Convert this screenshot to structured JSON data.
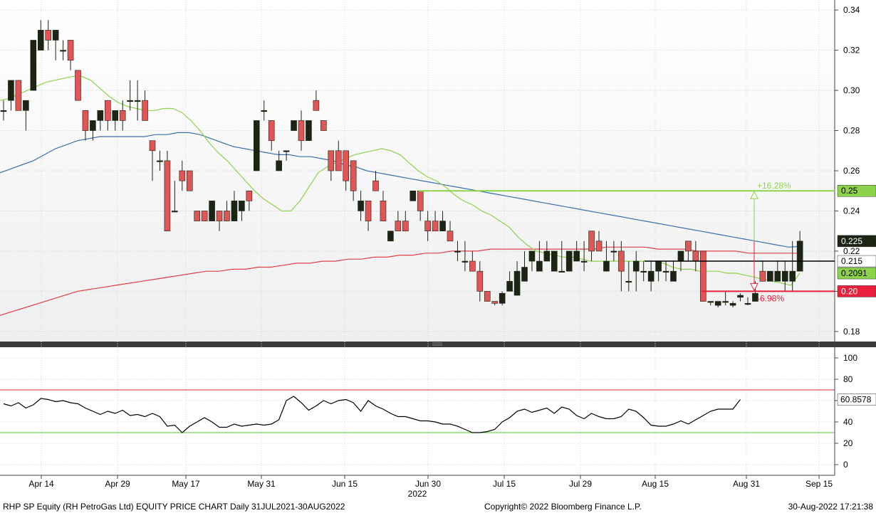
{
  "footer": {
    "left": "RHP SP Equity (RH PetroGas Ltd) EQUITY PRICE CHART  Daily 31JUL2021-30AUG2022",
    "center": "Copyright© 2022 Bloomberg Finance L.P.",
    "right": "30-Aug-2022 17:21:38"
  },
  "chart_data": {
    "type": "candlestick",
    "x_ticks": [
      "Apr 14",
      "Apr 29",
      "May 17",
      "May 31",
      "Jun 15",
      "Jun 30",
      "Jul 15",
      "Jul 29",
      "Aug 15",
      "Aug 31",
      "Sep 15"
    ],
    "x_year_label": "2022",
    "price_axis": {
      "ylim": [
        0.175,
        0.345
      ],
      "ticks": [
        "0.18",
        "0.20",
        "0.22",
        "0.24",
        "0.26",
        "0.28",
        "0.30",
        "0.32",
        "0.34"
      ]
    },
    "indicator_axis": {
      "ylim": [
        -10,
        110
      ],
      "ticks": [
        "0",
        "20",
        "40",
        "60",
        "80",
        "100"
      ],
      "overbought": 70,
      "oversold": 30
    },
    "colors": {
      "up": "#1c2414",
      "down": "#e05555",
      "ma_short": "#8cd24a",
      "ma_mid": "#3d6fb0",
      "ma_long": "#e04048",
      "indicator": "#000000",
      "target_high": "#8cd24a",
      "target_low": "#e8203c",
      "level_line": "#000000"
    },
    "candles": [
      [
        0.29,
        0.295,
        0.285,
        0.29
      ],
      [
        0.295,
        0.305,
        0.29,
        0.305
      ],
      [
        0.305,
        0.305,
        0.29,
        0.29
      ],
      [
        0.29,
        0.295,
        0.28,
        0.295
      ],
      [
        0.3,
        0.325,
        0.3,
        0.325
      ],
      [
        0.32,
        0.335,
        0.32,
        0.33
      ],
      [
        0.33,
        0.335,
        0.32,
        0.325
      ],
      [
        0.325,
        0.33,
        0.315,
        0.33
      ],
      [
        0.32,
        0.325,
        0.315,
        0.32
      ],
      [
        0.325,
        0.325,
        0.31,
        0.315
      ],
      [
        0.31,
        0.31,
        0.295,
        0.295
      ],
      [
        0.29,
        0.29,
        0.275,
        0.28
      ],
      [
        0.28,
        0.285,
        0.275,
        0.285
      ],
      [
        0.285,
        0.29,
        0.28,
        0.29
      ],
      [
        0.295,
        0.295,
        0.28,
        0.285
      ],
      [
        0.285,
        0.29,
        0.28,
        0.29
      ],
      [
        0.29,
        0.295,
        0.28,
        0.285
      ],
      [
        0.295,
        0.305,
        0.29,
        0.295
      ],
      [
        0.295,
        0.305,
        0.285,
        0.295
      ],
      [
        0.295,
        0.3,
        0.285,
        0.285
      ],
      [
        0.275,
        0.275,
        0.255,
        0.27
      ],
      [
        0.265,
        0.27,
        0.26,
        0.265
      ],
      [
        0.265,
        0.27,
        0.23,
        0.23
      ],
      [
        0.24,
        0.255,
        0.24,
        0.24
      ],
      [
        0.26,
        0.265,
        0.25,
        0.255
      ],
      [
        0.26,
        0.26,
        0.25,
        0.25
      ],
      [
        0.24,
        0.24,
        0.235,
        0.235
      ],
      [
        0.24,
        0.24,
        0.235,
        0.235
      ],
      [
        0.235,
        0.245,
        0.235,
        0.245
      ],
      [
        0.24,
        0.24,
        0.23,
        0.235
      ],
      [
        0.24,
        0.245,
        0.235,
        0.235
      ],
      [
        0.235,
        0.25,
        0.235,
        0.245
      ],
      [
        0.24,
        0.245,
        0.235,
        0.245
      ],
      [
        0.25,
        0.25,
        0.24,
        0.245
      ],
      [
        0.26,
        0.285,
        0.26,
        0.285
      ],
      [
        0.29,
        0.295,
        0.285,
        0.29
      ],
      [
        0.285,
        0.285,
        0.27,
        0.275
      ],
      [
        0.26,
        0.27,
        0.26,
        0.265
      ],
      [
        0.27,
        0.27,
        0.265,
        0.27
      ],
      [
        0.28,
        0.285,
        0.28,
        0.285
      ],
      [
        0.285,
        0.29,
        0.27,
        0.275
      ],
      [
        0.275,
        0.285,
        0.275,
        0.285
      ],
      [
        0.295,
        0.3,
        0.29,
        0.29
      ],
      [
        0.285,
        0.285,
        0.28,
        0.28
      ],
      [
        0.27,
        0.27,
        0.255,
        0.26
      ],
      [
        0.27,
        0.275,
        0.26,
        0.26
      ],
      [
        0.27,
        0.27,
        0.25,
        0.255
      ],
      [
        0.265,
        0.265,
        0.245,
        0.25
      ],
      [
        0.24,
        0.25,
        0.235,
        0.245
      ],
      [
        0.245,
        0.245,
        0.23,
        0.235
      ],
      [
        0.255,
        0.26,
        0.25,
        0.25
      ],
      [
        0.245,
        0.25,
        0.235,
        0.235
      ],
      [
        0.225,
        0.23,
        0.225,
        0.23
      ],
      [
        0.235,
        0.24,
        0.23,
        0.23
      ],
      [
        0.235,
        0.24,
        0.23,
        0.23
      ],
      [
        0.245,
        0.25,
        0.245,
        0.25
      ],
      [
        0.25,
        0.25,
        0.235,
        0.24
      ],
      [
        0.235,
        0.24,
        0.225,
        0.23
      ],
      [
        0.235,
        0.24,
        0.23,
        0.23
      ],
      [
        0.23,
        0.24,
        0.23,
        0.235
      ],
      [
        0.23,
        0.235,
        0.225,
        0.225
      ],
      [
        0.22,
        0.225,
        0.215,
        0.22
      ],
      [
        0.215,
        0.225,
        0.21,
        0.215
      ],
      [
        0.215,
        0.22,
        0.21,
        0.21
      ],
      [
        0.21,
        0.215,
        0.195,
        0.2
      ],
      [
        0.2,
        0.2,
        0.195,
        0.195
      ],
      [
        0.195,
        0.195,
        0.193,
        0.194
      ],
      [
        0.194,
        0.2,
        0.193,
        0.199
      ],
      [
        0.2,
        0.21,
        0.2,
        0.205
      ],
      [
        0.198,
        0.215,
        0.198,
        0.21
      ],
      [
        0.205,
        0.22,
        0.205,
        0.212
      ],
      [
        0.215,
        0.22,
        0.21,
        0.22
      ],
      [
        0.21,
        0.225,
        0.21,
        0.215
      ],
      [
        0.215,
        0.225,
        0.215,
        0.22
      ],
      [
        0.21,
        0.22,
        0.21,
        0.22
      ],
      [
        0.21,
        0.225,
        0.21,
        0.21
      ],
      [
        0.21,
        0.22,
        0.21,
        0.22
      ],
      [
        0.215,
        0.225,
        0.215,
        0.22
      ],
      [
        0.215,
        0.225,
        0.21,
        0.215
      ],
      [
        0.23,
        0.23,
        0.215,
        0.22
      ],
      [
        0.225,
        0.23,
        0.22,
        0.22
      ],
      [
        0.21,
        0.225,
        0.21,
        0.215
      ],
      [
        0.22,
        0.225,
        0.215,
        0.22
      ],
      [
        0.22,
        0.225,
        0.2,
        0.21
      ],
      [
        0.205,
        0.215,
        0.2,
        0.205
      ],
      [
        0.21,
        0.22,
        0.2,
        0.215
      ],
      [
        0.21,
        0.215,
        0.205,
        0.21
      ],
      [
        0.205,
        0.215,
        0.2,
        0.21
      ],
      [
        0.21,
        0.215,
        0.205,
        0.215
      ],
      [
        0.21,
        0.215,
        0.205,
        0.21
      ],
      [
        0.205,
        0.215,
        0.205,
        0.21
      ],
      [
        0.215,
        0.22,
        0.21,
        0.22
      ],
      [
        0.225,
        0.225,
        0.215,
        0.22
      ],
      [
        0.22,
        0.225,
        0.21,
        0.215
      ],
      [
        0.22,
        0.22,
        0.195,
        0.195
      ],
      [
        0.195,
        0.195,
        0.193,
        0.195
      ],
      [
        0.193,
        0.195,
        0.192,
        0.195
      ],
      [
        0.195,
        0.2,
        0.193,
        0.195
      ],
      [
        0.193,
        0.195,
        0.192,
        0.194
      ],
      [
        0.197,
        0.199,
        0.195,
        0.198
      ],
      [
        0.194,
        0.197,
        0.193,
        0.194
      ],
      [
        0.195,
        0.205,
        0.195,
        0.199
      ],
      [
        0.21,
        0.215,
        0.205,
        0.205
      ],
      [
        0.205,
        0.21,
        0.205,
        0.21
      ],
      [
        0.205,
        0.215,
        0.205,
        0.21
      ],
      [
        0.205,
        0.215,
        0.2,
        0.21
      ],
      [
        0.205,
        0.225,
        0.2,
        0.21
      ],
      [
        0.21,
        0.23,
        0.21,
        0.225
      ]
    ],
    "ma_short_values": [
      0.295,
      0.296,
      0.298,
      0.3,
      0.302,
      0.304,
      0.305,
      0.306,
      0.307,
      0.307,
      0.305,
      0.301,
      0.297,
      0.294,
      0.292,
      0.291,
      0.29,
      0.29,
      0.291,
      0.291,
      0.289,
      0.285,
      0.28,
      0.274,
      0.269,
      0.265,
      0.26,
      0.255,
      0.25,
      0.246,
      0.243,
      0.24,
      0.24,
      0.245,
      0.252,
      0.259,
      0.262,
      0.264,
      0.266,
      0.268,
      0.269,
      0.27,
      0.271,
      0.27,
      0.268,
      0.264,
      0.26,
      0.257,
      0.255,
      0.252,
      0.248,
      0.245,
      0.243,
      0.24,
      0.238,
      0.235,
      0.232,
      0.227,
      0.223,
      0.22,
      0.219,
      0.218,
      0.217,
      0.217,
      0.216,
      0.215,
      0.215,
      0.215,
      0.215,
      0.215,
      0.215,
      0.215,
      0.215,
      0.214,
      0.212,
      0.211,
      0.211,
      0.21,
      0.21,
      0.21,
      0.209,
      0.209,
      0.208,
      0.207,
      0.206,
      0.205,
      0.204,
      0.203,
      0.2091
    ],
    "ma_mid_values": [
      0.259,
      0.261,
      0.263,
      0.265,
      0.268,
      0.271,
      0.273,
      0.275,
      0.276,
      0.277,
      0.277,
      0.277,
      0.277,
      0.277,
      0.278,
      0.278,
      0.279,
      0.279,
      0.278,
      0.276,
      0.274,
      0.272,
      0.271,
      0.27,
      0.269,
      0.268,
      0.268,
      0.267,
      0.267,
      0.266,
      0.265,
      0.263,
      0.262,
      0.26,
      0.259,
      0.258,
      0.257,
      0.256,
      0.255,
      0.254,
      0.253,
      0.252,
      0.251,
      0.25,
      0.249,
      0.248,
      0.247,
      0.246,
      0.245,
      0.244,
      0.243,
      0.242,
      0.241,
      0.24,
      0.239,
      0.238,
      0.237,
      0.236,
      0.235,
      0.234,
      0.233,
      0.232,
      0.231,
      0.23,
      0.229,
      0.228,
      0.227,
      0.226,
      0.225,
      0.224,
      0.223,
      0.222,
      0.2223
    ],
    "ma_long_values": [
      0.188,
      0.19,
      0.192,
      0.194,
      0.196,
      0.198,
      0.2,
      0.201,
      0.202,
      0.203,
      0.204,
      0.205,
      0.206,
      0.207,
      0.208,
      0.209,
      0.21,
      0.21,
      0.211,
      0.211,
      0.212,
      0.212,
      0.213,
      0.214,
      0.214,
      0.215,
      0.215,
      0.216,
      0.216,
      0.217,
      0.217,
      0.218,
      0.218,
      0.219,
      0.219,
      0.22,
      0.22,
      0.22,
      0.221,
      0.221,
      0.221,
      0.221,
      0.221,
      0.221,
      0.221,
      0.221,
      0.221,
      0.222,
      0.222,
      0.222,
      0.222,
      0.221,
      0.221,
      0.221,
      0.22,
      0.22,
      0.22,
      0.22,
      0.219,
      0.219,
      0.219,
      0.219,
      0.219
    ],
    "indicator_values": [
      57,
      55,
      58,
      53,
      56,
      62,
      61,
      59,
      60,
      58,
      57,
      53,
      50,
      47,
      50,
      48,
      51,
      46,
      47,
      45,
      48,
      45,
      36,
      37,
      30,
      36,
      40,
      44,
      40,
      35,
      35,
      38,
      36,
      37,
      38,
      37,
      38,
      42,
      60,
      64,
      58,
      51,
      55,
      60,
      57,
      60,
      61,
      58,
      50,
      60,
      55,
      52,
      48,
      45,
      45,
      43,
      41,
      41,
      40,
      38,
      38,
      36,
      33,
      30,
      30,
      31,
      33,
      40,
      44,
      50,
      52,
      49,
      51,
      53,
      48,
      54,
      52,
      46,
      43,
      48,
      45,
      43,
      43,
      45,
      52,
      50,
      44,
      37,
      36,
      36,
      38,
      41,
      38,
      42,
      46,
      50,
      52,
      52,
      52,
      61
    ],
    "price_labels": [
      {
        "text": "0.25",
        "value": 0.25,
        "color": "#8cd24a",
        "text_color": "#000000"
      },
      {
        "text": "0.225",
        "value": 0.225,
        "color": "#1c2414",
        "text_color": "#ffffff"
      },
      {
        "text": "0.215",
        "value": 0.215,
        "color": "#ffffff",
        "text_color": "#000000"
      },
      {
        "text": "0.2091",
        "value": 0.2091,
        "color": "#8cd24a",
        "text_color": "#000000"
      },
      {
        "text": "0.20",
        "value": 0.2,
        "color": "#e8203c",
        "text_color": "#ffffff"
      }
    ],
    "indicator_label": {
      "text": "60.8578",
      "value": 60.8578
    },
    "target_high": {
      "value": 0.25,
      "pct": "+16.28%"
    },
    "target_low": {
      "value": 0.2,
      "pct": "-6.98%"
    },
    "level_line": 0.215
  }
}
